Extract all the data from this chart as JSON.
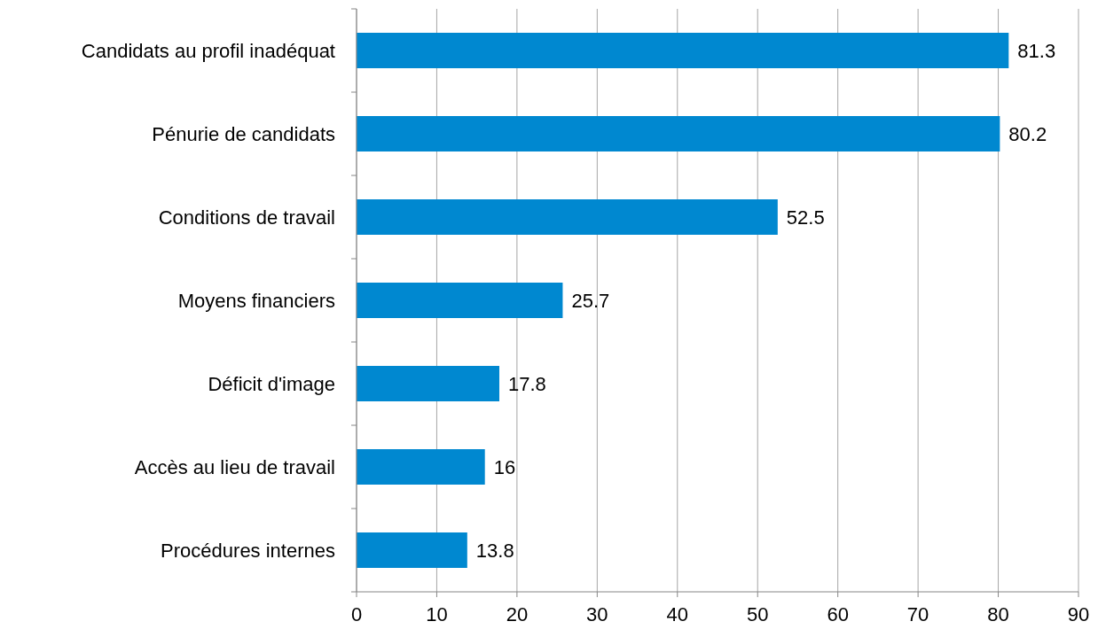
{
  "chart_data": {
    "type": "bar",
    "orientation": "horizontal",
    "categories": [
      "Candidats au profil inadéquat",
      "Pénurie de candidats",
      "Conditions de travail",
      "Moyens financiers",
      "Déficit d'image",
      "Accès au lieu de travail",
      "Procédures internes"
    ],
    "values": [
      81.3,
      80.2,
      52.5,
      25.7,
      17.8,
      16,
      13.8
    ],
    "color": "#0088d0",
    "xlim": [
      0,
      90
    ],
    "xticks": [
      0,
      10,
      20,
      30,
      40,
      50,
      60,
      70,
      80,
      90
    ],
    "grid": "x",
    "data_labels": true
  }
}
